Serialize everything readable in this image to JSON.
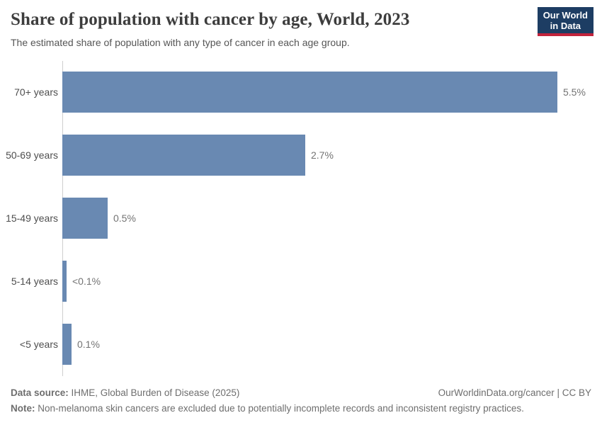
{
  "header": {
    "title": "Share of population with cancer by age, World, 2023",
    "subtitle": "The estimated share of population with any type of cancer in each age group.",
    "logo": {
      "line1": "Our World",
      "line2": "in Data"
    }
  },
  "chart_data": {
    "type": "bar",
    "orientation": "horizontal",
    "title": "Share of population with cancer by age, World, 2023",
    "categories": [
      "70+ years",
      "50-69 years",
      "15-49 years",
      "5-14 years",
      "<5 years"
    ],
    "values": [
      5.5,
      2.7,
      0.5,
      0.05,
      0.1
    ],
    "value_labels": [
      "5.5%",
      "2.7%",
      "0.5%",
      "<0.1%",
      "0.1%"
    ],
    "unit": "%",
    "xlabel": "",
    "ylabel": "",
    "xlim": [
      0,
      5.5
    ],
    "grid": false,
    "legend": "none",
    "bar_color": "#6989b2"
  },
  "footer": {
    "source_label": "Data source:",
    "source_text": " IHME, Global Burden of Disease (2025)",
    "rights": "OurWorldinData.org/cancer | CC BY",
    "note_label": "Note:",
    "note_text": " Non-melanoma skin cancers are excluded due to potentially incomplete records and inconsistent registry practices."
  },
  "colors": {
    "bar": "#6989b2",
    "axis": "#cfcfcf",
    "logo_navy": "#1d3d63",
    "logo_red": "#c2233c"
  }
}
